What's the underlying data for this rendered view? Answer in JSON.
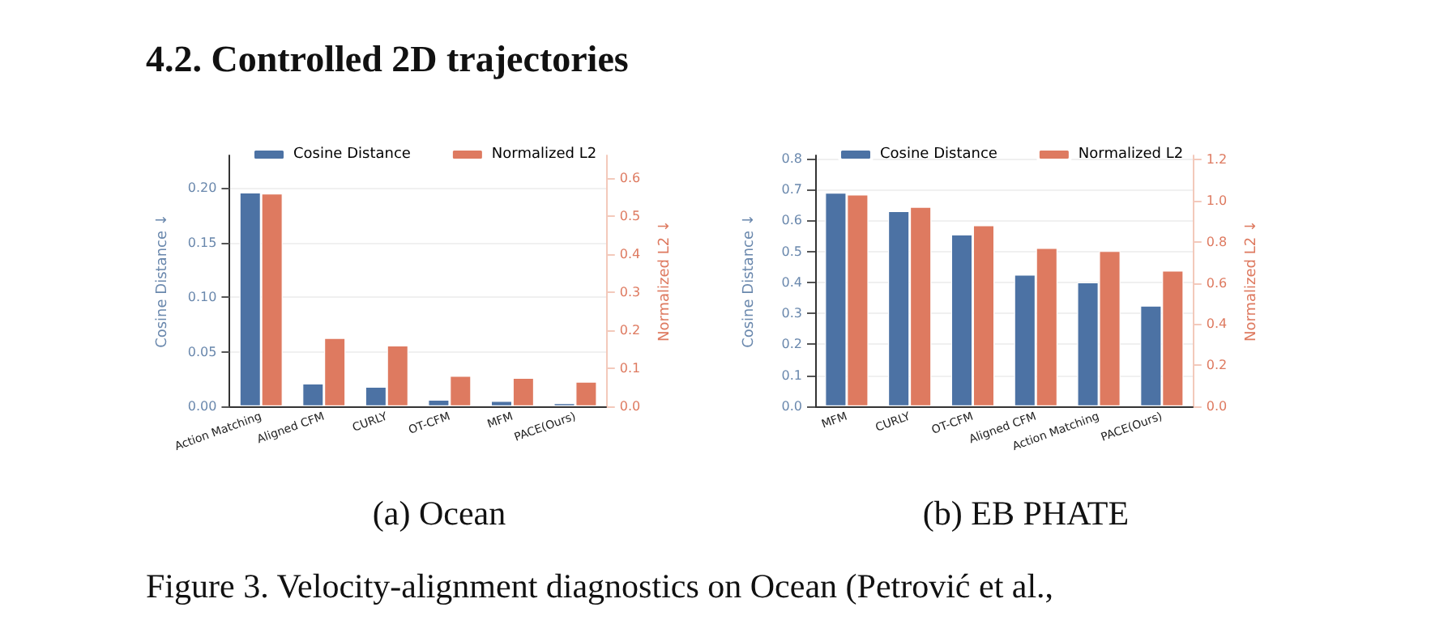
{
  "chart_data": [
    {
      "type": "bar",
      "subtitle": "(a) Ocean",
      "ylabel": "Cosine Distance ↓",
      "y2label": "Normalized L2 ↓",
      "annotations": [
        "4.2. Controlled 2D trajectories",
        "Figure 3. Velocity-alignment diagnostics on Ocean (Petrović et al.,"
      ],
      "categories": [
        "Action Matching",
        "Aligned CFM",
        "CURLY",
        "OT-CFM",
        "MFM",
        "PACE(Ours)"
      ],
      "series": [
        {
          "name": "Cosine Distance",
          "color": "#4c72a4",
          "values": [
            0.196,
            0.021,
            0.018,
            0.006,
            0.005,
            0.003
          ]
        },
        {
          "name": "Normalized L2",
          "color": "#de7a60",
          "axis": "y2",
          "values": [
            0.56,
            0.18,
            0.16,
            0.08,
            0.075,
            0.065
          ]
        }
      ],
      "ylim": [
        0,
        0.23
      ],
      "yticks": [
        {
          "value": 0,
          "label": "0.00"
        },
        0.05,
        {
          "value": 0.1,
          "label": "0.10"
        },
        0.15,
        {
          "value": 0.2,
          "label": "0.20"
        }
      ],
      "y2lim": [
        0,
        0.66
      ],
      "y2ticks": [
        {
          "value": 0,
          "label": "0.0"
        },
        0.1,
        0.2,
        0.3,
        0.4,
        0.5,
        0.6
      ],
      "grid": "y",
      "legend": "top left"
    },
    {
      "type": "bar",
      "subtitle": "(b) EB PHATE",
      "ylabel": "Cosine Distance ↓",
      "y2label": "Normalized L2 ↓",
      "categories": [
        "MFM",
        "CURLY",
        "OT-CFM",
        "Aligned CFM",
        "Action Matching",
        "PACE(Ours)"
      ],
      "series": [
        {
          "name": "Cosine Distance",
          "color": "#4c72a4",
          "values": [
            0.69,
            0.63,
            0.555,
            0.425,
            0.4,
            0.325
          ]
        },
        {
          "name": "Normalized L2",
          "color": "#de7a60",
          "axis": "y2",
          "values": [
            1.03,
            0.97,
            0.88,
            0.77,
            0.755,
            0.66
          ]
        }
      ],
      "ylim": [
        0,
        0.81
      ],
      "yticks": [
        {
          "value": 0,
          "label": "0.0"
        },
        0.1,
        0.2,
        0.3,
        0.4,
        0.5,
        0.6,
        0.7,
        0.8
      ],
      "y2lim": [
        0,
        1.22
      ],
      "y2ticks": [
        {
          "value": 0,
          "label": "0.0"
        },
        0.2,
        0.4,
        0.6,
        0.8,
        {
          "value": 1,
          "label": "1.0"
        },
        {
          "value": 1.2,
          "label": "1.2"
        }
      ],
      "grid": "y",
      "legend": "top left"
    }
  ]
}
